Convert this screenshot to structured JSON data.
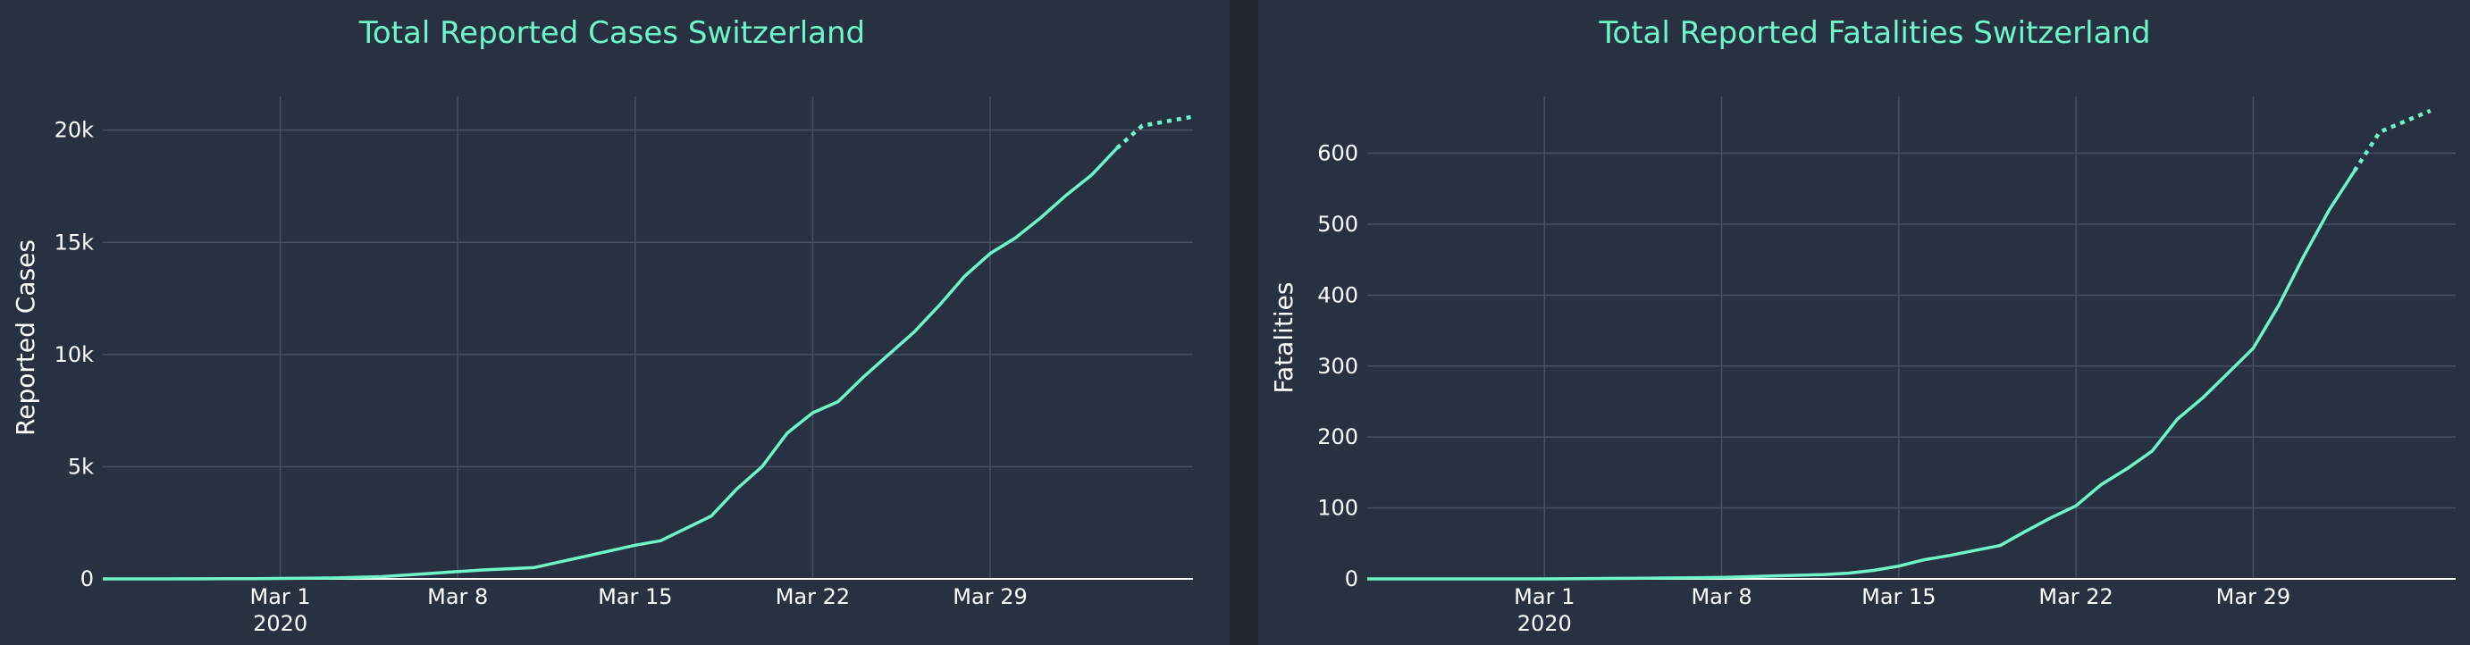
{
  "colors": {
    "background": "#283142",
    "gutter": "#22272f",
    "line": "#6ff5c9",
    "title": "#6ff5c9",
    "text": "#ffffff",
    "grid": "#465063"
  },
  "chart_data": [
    {
      "type": "line",
      "title": "Total Reported Cases Switzerland",
      "ylabel": "Reported Cases",
      "xlabel": "",
      "x_range": [
        "2020-02-23",
        "2020-04-06"
      ],
      "ylim": [
        0,
        21500
      ],
      "x_ticks": [
        {
          "date": "2020-03-01",
          "label": "Mar 1",
          "sublabel": "2020"
        },
        {
          "date": "2020-03-08",
          "label": "Mar 8"
        },
        {
          "date": "2020-03-15",
          "label": "Mar 15"
        },
        {
          "date": "2020-03-22",
          "label": "Mar 22"
        },
        {
          "date": "2020-03-29",
          "label": "Mar 29"
        }
      ],
      "y_ticks": [
        {
          "value": 0,
          "label": "0"
        },
        {
          "value": 5000,
          "label": "5k"
        },
        {
          "value": 10000,
          "label": "10k"
        },
        {
          "value": 15000,
          "label": "15k"
        },
        {
          "value": 20000,
          "label": "20k"
        }
      ],
      "grid": true,
      "series": [
        {
          "style": "solid",
          "x": [
            "2020-02-23",
            "2020-02-25",
            "2020-02-27",
            "2020-02-29",
            "2020-03-01",
            "2020-03-03",
            "2020-03-05",
            "2020-03-07",
            "2020-03-09",
            "2020-03-11",
            "2020-03-13",
            "2020-03-15",
            "2020-03-16",
            "2020-03-18",
            "2020-03-19",
            "2020-03-20",
            "2020-03-21",
            "2020-03-22",
            "2020-03-23",
            "2020-03-24",
            "2020-03-25",
            "2020-03-26",
            "2020-03-27",
            "2020-03-28",
            "2020-03-29",
            "2020-03-30",
            "2020-03-31",
            "2020-04-01",
            "2020-04-02"
          ],
          "y": [
            0,
            0,
            5,
            10,
            20,
            40,
            100,
            250,
            400,
            500,
            1000,
            1500,
            1700,
            2800,
            4000,
            5000,
            6500,
            7400,
            7900,
            9000,
            10000,
            11000,
            12200,
            13500,
            14500,
            15200,
            16100,
            17100,
            18000
          ]
        },
        {
          "style": "solid",
          "x": [
            "2020-04-02",
            "2020-04-03"
          ],
          "y": [
            18000,
            19200
          ]
        },
        {
          "style": "dotted",
          "x": [
            "2020-04-03",
            "2020-04-04",
            "2020-04-05",
            "2020-04-06"
          ],
          "y": [
            19200,
            20200,
            20400,
            20600
          ]
        }
      ]
    },
    {
      "type": "line",
      "title": "Total Reported Fatalities Switzerland",
      "ylabel": "Fatalities",
      "xlabel": "",
      "x_range": [
        "2020-02-23",
        "2020-04-06"
      ],
      "ylim": [
        0,
        680
      ],
      "x_ticks": [
        {
          "date": "2020-03-01",
          "label": "Mar 1",
          "sublabel": "2020"
        },
        {
          "date": "2020-03-08",
          "label": "Mar 8"
        },
        {
          "date": "2020-03-15",
          "label": "Mar 15"
        },
        {
          "date": "2020-03-22",
          "label": "Mar 22"
        },
        {
          "date": "2020-03-29",
          "label": "Mar 29"
        }
      ],
      "y_ticks": [
        {
          "value": 0,
          "label": "0"
        },
        {
          "value": 100,
          "label": "100"
        },
        {
          "value": 200,
          "label": "200"
        },
        {
          "value": 300,
          "label": "300"
        },
        {
          "value": 400,
          "label": "400"
        },
        {
          "value": 500,
          "label": "500"
        },
        {
          "value": 600,
          "label": "600"
        }
      ],
      "grid": true,
      "series": [
        {
          "style": "solid",
          "x": [
            "2020-02-23",
            "2020-03-01",
            "2020-03-05",
            "2020-03-08",
            "2020-03-10",
            "2020-03-12",
            "2020-03-13",
            "2020-03-14",
            "2020-03-15",
            "2020-03-16",
            "2020-03-17",
            "2020-03-18",
            "2020-03-19",
            "2020-03-20",
            "2020-03-21",
            "2020-03-22",
            "2020-03-23",
            "2020-03-24",
            "2020-03-25",
            "2020-03-26",
            "2020-03-27",
            "2020-03-28",
            "2020-03-29",
            "2020-03-30",
            "2020-03-31",
            "2020-04-01",
            "2020-04-02"
          ],
          "y": [
            0,
            0,
            1,
            2,
            4,
            6,
            8,
            12,
            18,
            27,
            33,
            40,
            47,
            67,
            86,
            103,
            133,
            155,
            180,
            225,
            255,
            290,
            325,
            385,
            455,
            520,
            575
          ]
        },
        {
          "style": "dotted",
          "x": [
            "2020-04-02",
            "2020-04-03",
            "2020-04-04",
            "2020-04-05"
          ],
          "y": [
            575,
            630,
            645,
            660
          ]
        }
      ]
    }
  ]
}
